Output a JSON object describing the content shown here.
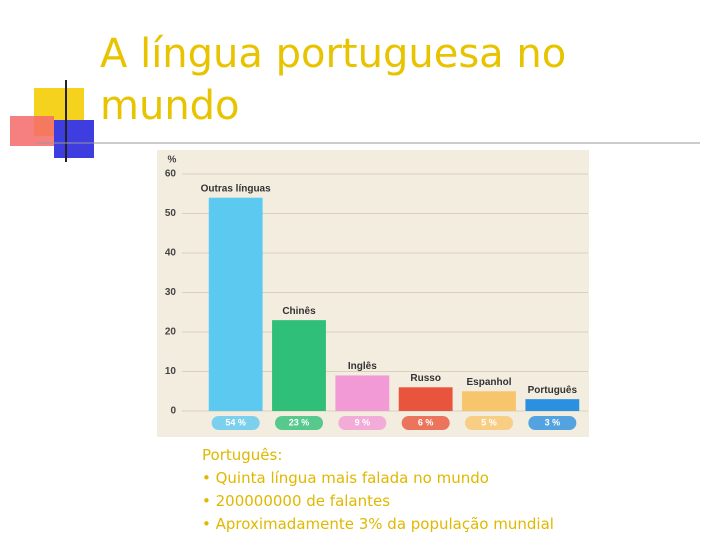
{
  "slide": {
    "title": "A língua portuguesa no mundo",
    "notes": [
      "Português:",
      "• Quinta língua mais falada no mundo",
      "• 200000000 de falantes",
      "• Aproximadamente 3% da população mundial"
    ]
  },
  "chart_data": {
    "type": "bar",
    "y_label": "%",
    "categories": [
      "Outras línguas",
      "Chinês",
      "Inglês",
      "Russo",
      "Espanhol",
      "Português"
    ],
    "values": [
      54,
      23,
      9,
      6,
      5,
      3
    ],
    "value_labels": [
      "54 %",
      "23 %",
      "9 %",
      "6 %",
      "5 %",
      "3 %"
    ],
    "colors": [
      "#5cc9f0",
      "#2fbf78",
      "#f29ad6",
      "#e8553c",
      "#f7c66c",
      "#2b90e0"
    ],
    "ylim": [
      0,
      60
    ],
    "yticks": [
      0,
      10,
      20,
      30,
      40,
      50,
      60
    ],
    "grid": true
  }
}
